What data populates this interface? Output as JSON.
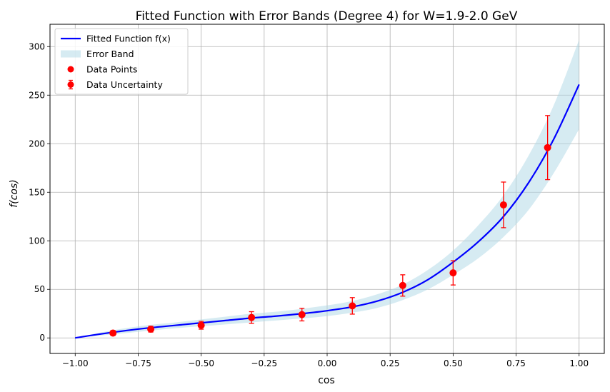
{
  "chart_data": {
    "type": "line",
    "title": "Fitted Function with Error Bands (Degree 4) for W=1.9-2.0 GeV",
    "xlabel": "cos",
    "ylabel": "f(cos)",
    "xlim": [
      -1.1,
      1.1
    ],
    "ylim": [
      -16,
      323
    ],
    "xticks": [
      -1.0,
      -0.75,
      -0.5,
      -0.25,
      0.0,
      0.25,
      0.5,
      0.75,
      1.0
    ],
    "xtick_labels": [
      "−1.00",
      "−0.75",
      "−0.50",
      "−0.25",
      "0.00",
      "0.25",
      "0.50",
      "0.75",
      "1.00"
    ],
    "yticks": [
      0,
      50,
      100,
      150,
      200,
      250,
      300
    ],
    "ytick_labels": [
      "0",
      "50",
      "100",
      "150",
      "200",
      "250",
      "300"
    ],
    "grid": true,
    "legend_position": "top-left",
    "legend": [
      {
        "key": "fit",
        "label": "Fitted Function f(x)"
      },
      {
        "key": "band",
        "label": "Error Band"
      },
      {
        "key": "points",
        "label": "Data Points"
      },
      {
        "key": "errors",
        "label": "Data Uncertainty"
      }
    ],
    "colors": {
      "fit": "#0000ff",
      "band": "#add8e6",
      "points": "#ff0000",
      "grid": "#b0b0b0"
    },
    "fit_curve": {
      "x": [
        -1.0,
        -0.9,
        -0.8,
        -0.7,
        -0.6,
        -0.5,
        -0.4,
        -0.3,
        -0.2,
        -0.1,
        0.0,
        0.1,
        0.2,
        0.3,
        0.4,
        0.5,
        0.6,
        0.7,
        0.8,
        0.9,
        1.0
      ],
      "y": [
        0,
        4,
        7.5,
        10.5,
        13,
        15.5,
        18,
        20.5,
        22.5,
        25,
        28,
        32,
        38,
        47,
        60,
        78,
        99,
        125,
        160,
        205,
        261
      ],
      "band_lower": [
        0,
        2.5,
        5,
        7.5,
        10,
        12,
        14,
        16,
        18,
        20,
        22.5,
        26,
        31,
        39,
        50,
        65,
        82,
        104,
        132,
        170,
        215
      ],
      "band_upper": [
        0,
        5.5,
        10,
        13.5,
        16,
        19,
        22,
        25,
        27,
        30,
        33.5,
        38,
        45,
        55,
        70,
        90,
        116,
        147,
        188,
        240,
        307
      ]
    },
    "data_points": {
      "x": [
        -0.85,
        -0.7,
        -0.5,
        -0.3,
        -0.1,
        0.1,
        0.3,
        0.5,
        0.7,
        0.875
      ],
      "y": [
        5,
        9,
        13,
        21,
        24,
        33,
        54,
        67,
        137,
        196
      ],
      "err": [
        2.5,
        3,
        4,
        6,
        6.5,
        8.5,
        11,
        12.5,
        23.5,
        33
      ]
    }
  }
}
